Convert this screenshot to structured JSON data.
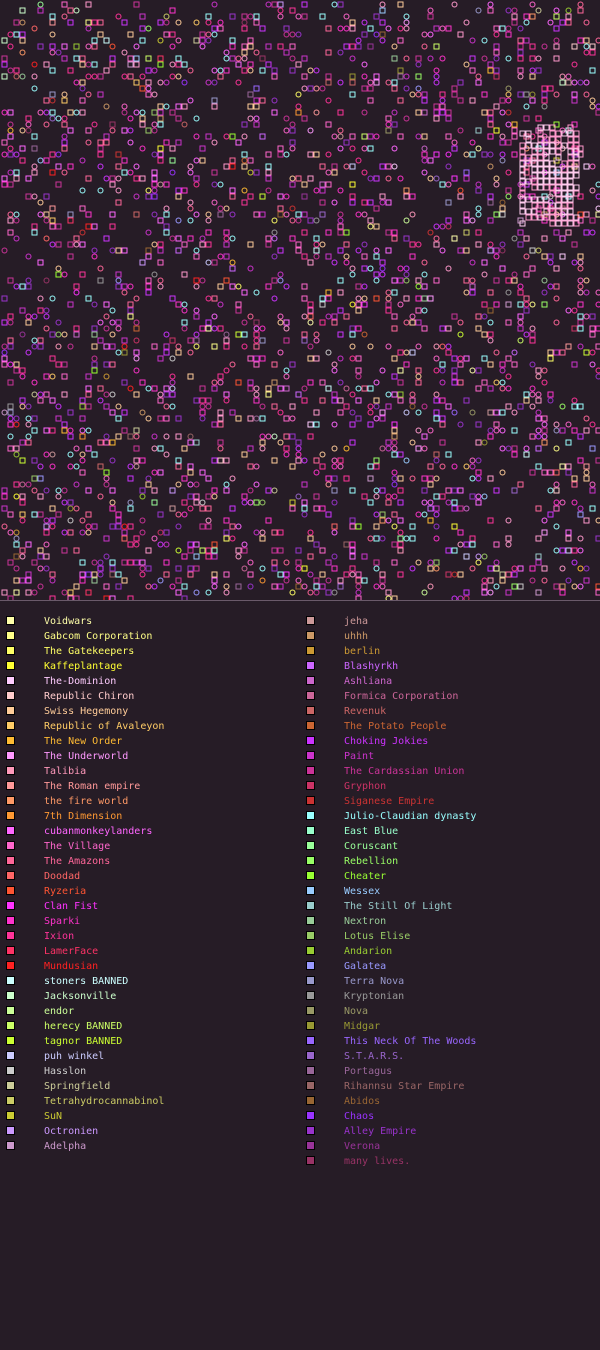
{
  "legend": {
    "left": [
      {
        "label": "Voidwars",
        "color": "#ffffaa"
      },
      {
        "label": "Gabcom Corporation",
        "color": "#ffff88"
      },
      {
        "label": "The Gatekeepers",
        "color": "#ffff66"
      },
      {
        "label": "Kaffeplantage",
        "color": "#ffff33"
      },
      {
        "label": "The-Dominion",
        "color": "#ffccff"
      },
      {
        "label": "Republic Chiron",
        "color": "#ffcccc"
      },
      {
        "label": "Swiss Hegemony",
        "color": "#ffcc99"
      },
      {
        "label": "Republic of Avaleyon",
        "color": "#ffcc66"
      },
      {
        "label": "The New Order",
        "color": "#ffbb33"
      },
      {
        "label": "The Underworld",
        "color": "#ff99ff"
      },
      {
        "label": "Talibia",
        "color": "#ff99bb"
      },
      {
        "label": "The Roman empire",
        "color": "#ff9999"
      },
      {
        "label": "the fire world",
        "color": "#ff9966"
      },
      {
        "label": "7th Dimension",
        "color": "#ff9933"
      },
      {
        "label": "cubanmonkeylanders",
        "color": "#ff66ff"
      },
      {
        "label": "The Village",
        "color": "#ff66cc"
      },
      {
        "label": "The Amazons",
        "color": "#ff6699"
      },
      {
        "label": "Doodad",
        "color": "#ff6666"
      },
      {
        "label": "Ryzeria",
        "color": "#ff5533"
      },
      {
        "label": "Clan Fist",
        "color": "#ff33ff"
      },
      {
        "label": "Sparki",
        "color": "#ff33cc"
      },
      {
        "label": "Ixion",
        "color": "#ff3399"
      },
      {
        "label": "LamerFace",
        "color": "#ff3366"
      },
      {
        "label": "Mundusian",
        "color": "#ff2222"
      },
      {
        "label": "stoners BANNED",
        "color": "#ccffff"
      },
      {
        "label": "Jacksonville",
        "color": "#ccffcc"
      },
      {
        "label": "endor",
        "color": "#ccff99"
      },
      {
        "label": "herecy BANNED",
        "color": "#ccff66"
      },
      {
        "label": "tagnor BANNED",
        "color": "#ccff33"
      },
      {
        "label": "puh winkel",
        "color": "#ccccff"
      },
      {
        "label": "Hasslon",
        "color": "#cccccc"
      },
      {
        "label": "Springfield",
        "color": "#cccc99"
      },
      {
        "label": "Tetrahydrocannabinol",
        "color": "#cccc66"
      },
      {
        "label": "SuN",
        "color": "#cccc33"
      },
      {
        "label": "Octronien",
        "color": "#cc99ff"
      },
      {
        "label": "Adelpha",
        "color": "#cc99cc"
      }
    ],
    "right": [
      {
        "label": "jeha",
        "color": "#cc9999"
      },
      {
        "label": "uhhh",
        "color": "#cc9966"
      },
      {
        "label": "berlin",
        "color": "#cc9933"
      },
      {
        "label": "Blashyrkh",
        "color": "#cc66ff"
      },
      {
        "label": "Ashliana",
        "color": "#cc66cc"
      },
      {
        "label": "Formica Corporation",
        "color": "#cc6699"
      },
      {
        "label": "Revenuk",
        "color": "#cc6666"
      },
      {
        "label": "The Potato People",
        "color": "#cc6633"
      },
      {
        "label": "Choking Jokies",
        "color": "#cc33ff"
      },
      {
        "label": "Paint",
        "color": "#cc33cc"
      },
      {
        "label": "The Cardassian Union",
        "color": "#cc3399"
      },
      {
        "label": "Gryphon",
        "color": "#cc3366"
      },
      {
        "label": "Siganese Empire",
        "color": "#cc3333"
      },
      {
        "label": "Julio-Claudian dynasty",
        "color": "#99ffff"
      },
      {
        "label": "East Blue",
        "color": "#99ffcc"
      },
      {
        "label": "Coruscant",
        "color": "#99ff99"
      },
      {
        "label": "Rebellion",
        "color": "#99ff66"
      },
      {
        "label": "Cheater",
        "color": "#99ff33"
      },
      {
        "label": "Wessex",
        "color": "#99ccff"
      },
      {
        "label": "The Still Of Light",
        "color": "#99cccc"
      },
      {
        "label": "Nextron",
        "color": "#99cc99"
      },
      {
        "label": "Lotus Elise",
        "color": "#99cc66"
      },
      {
        "label": "Andarion",
        "color": "#99cc33"
      },
      {
        "label": "Galatea",
        "color": "#9999ff"
      },
      {
        "label": "Terra Nova",
        "color": "#9999cc"
      },
      {
        "label": "Kryptonian",
        "color": "#999999"
      },
      {
        "label": "Nova",
        "color": "#999966"
      },
      {
        "label": "Midgar",
        "color": "#999933"
      },
      {
        "label": "This Neck Of The Woods",
        "color": "#9966ff"
      },
      {
        "label": "S.T.A.R.S.",
        "color": "#9966cc"
      },
      {
        "label": "Portagus",
        "color": "#996699"
      },
      {
        "label": "Rihannsu Star Empire",
        "color": "#996666"
      },
      {
        "label": "Abidos",
        "color": "#996633"
      },
      {
        "label": "Chaos",
        "color": "#9933ff"
      },
      {
        "label": "Alley Empire",
        "color": "#9933cc"
      },
      {
        "label": "Verona",
        "color": "#993399"
      },
      {
        "label": "many lives.",
        "color": "#993366"
      }
    ]
  },
  "colors": {
    "background": "#261c26",
    "divider": "#6a5a6a"
  }
}
